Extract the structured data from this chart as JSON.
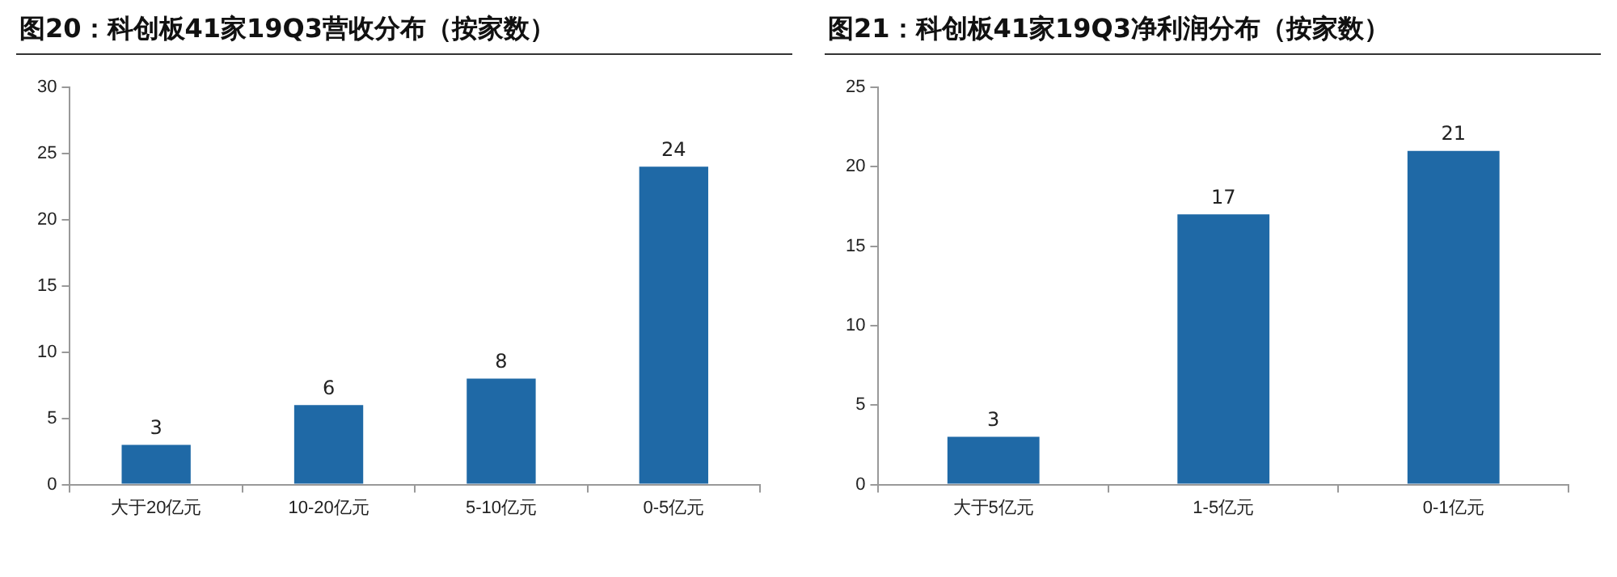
{
  "chart_data": [
    {
      "type": "bar",
      "title": "图20：科创板41家19Q3营收分布（按家数）",
      "categories": [
        "大于20亿元",
        "10-20亿元",
        "5-10亿元",
        "0-5亿元"
      ],
      "values": [
        3,
        6,
        8,
        24
      ],
      "color": "#1f69a6",
      "ylim": [
        0,
        30
      ],
      "yticks": [
        0,
        5,
        10,
        15,
        20,
        25,
        30
      ],
      "grid": false,
      "data_labels": true
    },
    {
      "type": "bar",
      "title": "图21：科创板41家19Q3净利润分布（按家数）",
      "categories": [
        "大于5亿元",
        "1-5亿元",
        "0-1亿元"
      ],
      "values": [
        3,
        17,
        21
      ],
      "color": "#1f69a6",
      "ylim": [
        0,
        25
      ],
      "yticks": [
        0,
        5,
        10,
        15,
        20,
        25
      ],
      "grid": false,
      "data_labels": true
    }
  ]
}
